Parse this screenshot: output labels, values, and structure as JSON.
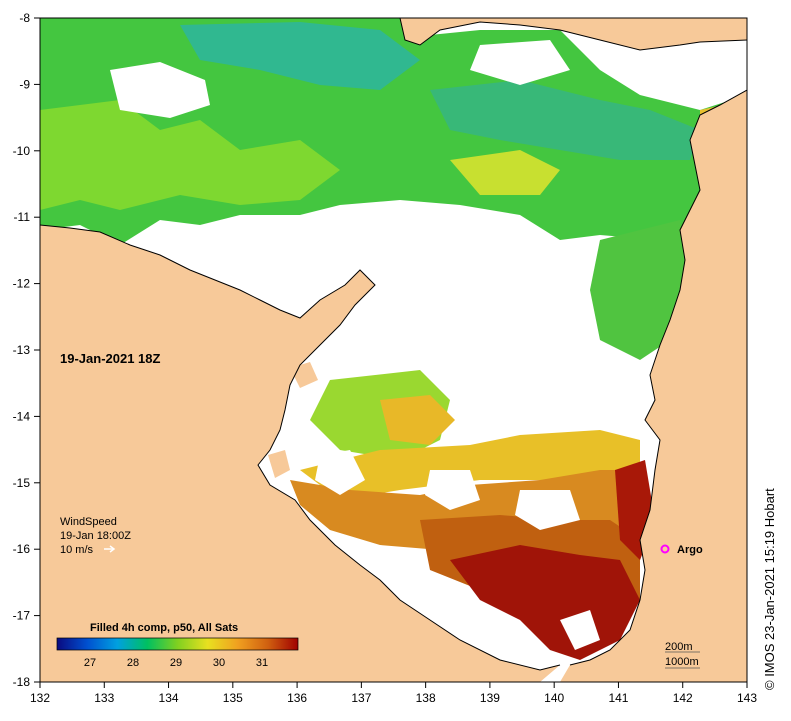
{
  "map": {
    "date_label": "19-Jan-2021 18Z",
    "wind": {
      "title": "WindSpeed",
      "time": "19-Jan 18:00Z",
      "scale": "10 m/s"
    },
    "argo_label": "Argo",
    "depth_contours": [
      "200m",
      "1000m"
    ],
    "credit": "© IMOS 23-Jan-2021 15:19 Hobart",
    "colorbar": {
      "title": "Filled 4h comp, p50, All Sats",
      "ticks": [
        "27",
        "28",
        "29",
        "30",
        "31"
      ],
      "colors": [
        "#0a0a80",
        "#0050d0",
        "#00a0e0",
        "#00c060",
        "#80d020",
        "#e8e020",
        "#f0a020",
        "#d06010",
        "#a00000"
      ]
    },
    "x_axis_ticks": [
      "132",
      "133",
      "134",
      "135",
      "136",
      "137",
      "138",
      "139",
      "140",
      "141",
      "142",
      "143"
    ],
    "y_axis_ticks": [
      "-8",
      "-9",
      "-10",
      "-11",
      "-12",
      "-13",
      "-14",
      "-15",
      "-16",
      "-17",
      "-18"
    ],
    "colors": {
      "land": "#f7c999",
      "cloud": "#ffffff",
      "sst_green": "#40c040",
      "sst_yellow": "#e0e020",
      "sst_orange": "#e09020",
      "sst_red": "#a01000",
      "argo": "#ff00ff"
    }
  }
}
